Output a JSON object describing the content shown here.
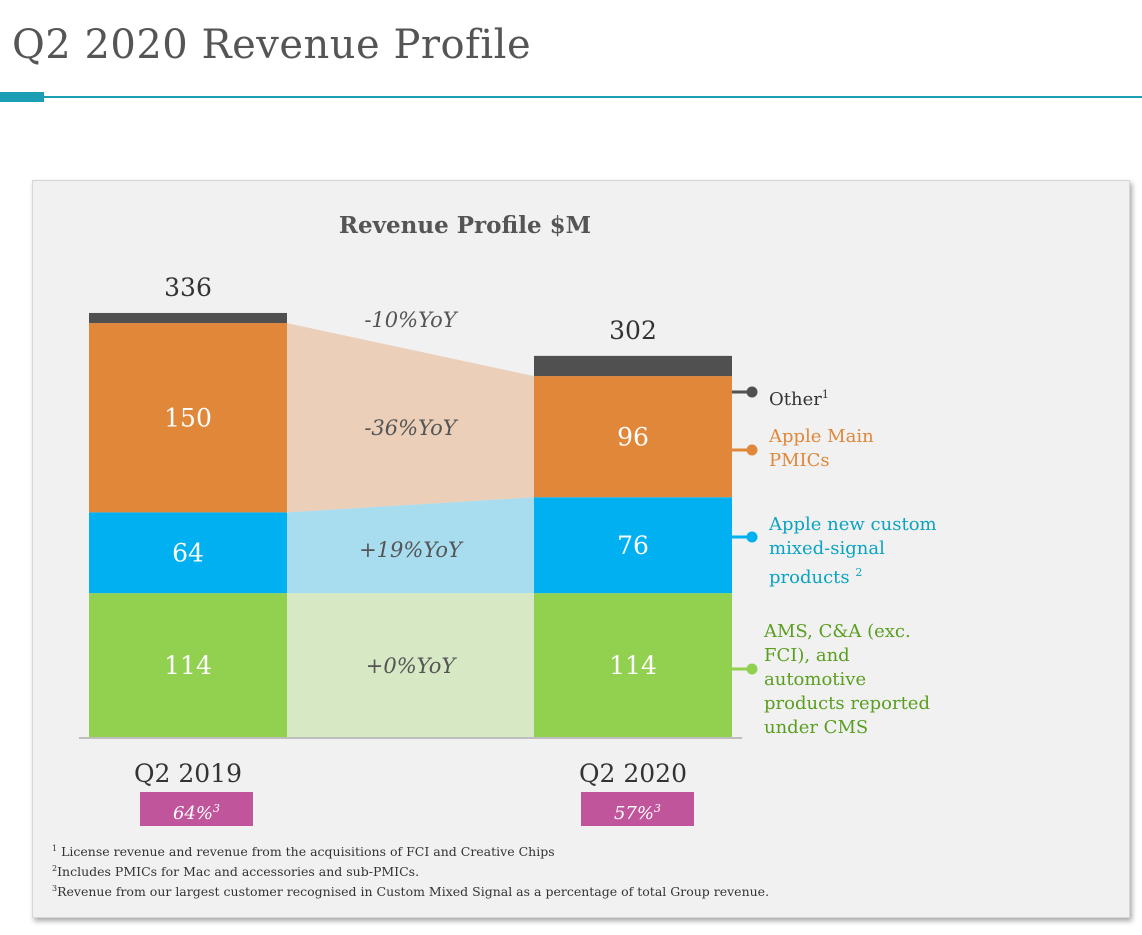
{
  "slide": {
    "title": "Q2 2020 Revenue Profile",
    "accent_color": "#1b9db3"
  },
  "chart_data": {
    "type": "bar",
    "stacked": true,
    "title": "Revenue Profile $M",
    "categories": [
      "Q2 2019",
      "Q2 2020"
    ],
    "totals": [
      336,
      302
    ],
    "series": [
      {
        "name": "AMS, C&A (exc. FCI), and automotive products reported under CMS",
        "values": [
          114,
          114
        ],
        "labels": [
          "114",
          "114"
        ],
        "color": "#92d050",
        "band_color": "#d6e8c4",
        "change": "+0%YoY"
      },
      {
        "name": "Apple new custom mixed-signal products",
        "values": [
          64,
          76
        ],
        "labels": [
          "64",
          "76"
        ],
        "color": "#00b0f0",
        "band_color": "#a8dcef",
        "change": "+19%YoY"
      },
      {
        "name": "Apple Main PMICs",
        "values": [
          150,
          96
        ],
        "labels": [
          "150",
          "96"
        ],
        "color": "#e0873a",
        "band_color": "#ebcfb9",
        "change": "-36%YoY"
      },
      {
        "name": "Other",
        "values": [
          8,
          16
        ],
        "labels": [
          "",
          ""
        ],
        "color": "#505050",
        "band_color": "",
        "change": ""
      }
    ],
    "total_change": "-10%YoY",
    "ylim": [
      0,
      340
    ]
  },
  "legend": [
    {
      "name_l1": "Other",
      "sup": "1",
      "color": "#505050",
      "text_color": "#333333"
    },
    {
      "name_l1": "Apple Main",
      "name_l2": "PMICs",
      "color": "#e0873a",
      "text_color": "#e0873a"
    },
    {
      "name_l1": "Apple new custom",
      "name_l2": "mixed-signal",
      "name_l3": "products",
      "sup": "2",
      "color": "#00b0f0",
      "text_color": "#0aa3c2"
    },
    {
      "name_l1": "AMS, C&A (exc.",
      "name_l2": "FCI), and",
      "name_l3": "automotive",
      "name_l4": "products reported",
      "name_l5": "under CMS",
      "color": "#92d050",
      "text_color": "#5a9e1f"
    }
  ],
  "largest_customer_share": [
    {
      "value": "64%",
      "sup": "3"
    },
    {
      "value": "57%",
      "sup": "3"
    }
  ],
  "badge_color": "#c0559b",
  "footnotes": [
    {
      "mark": "1",
      "text": "License revenue and revenue from the acquisitions of FCI and Creative Chips"
    },
    {
      "mark": "2",
      "text": "Includes PMICs for Mac and accessories and sub-PMICs."
    },
    {
      "mark": "3",
      "text": "Revenue from our largest customer recognised in Custom Mixed Signal as a percentage of total Group revenue."
    }
  ]
}
